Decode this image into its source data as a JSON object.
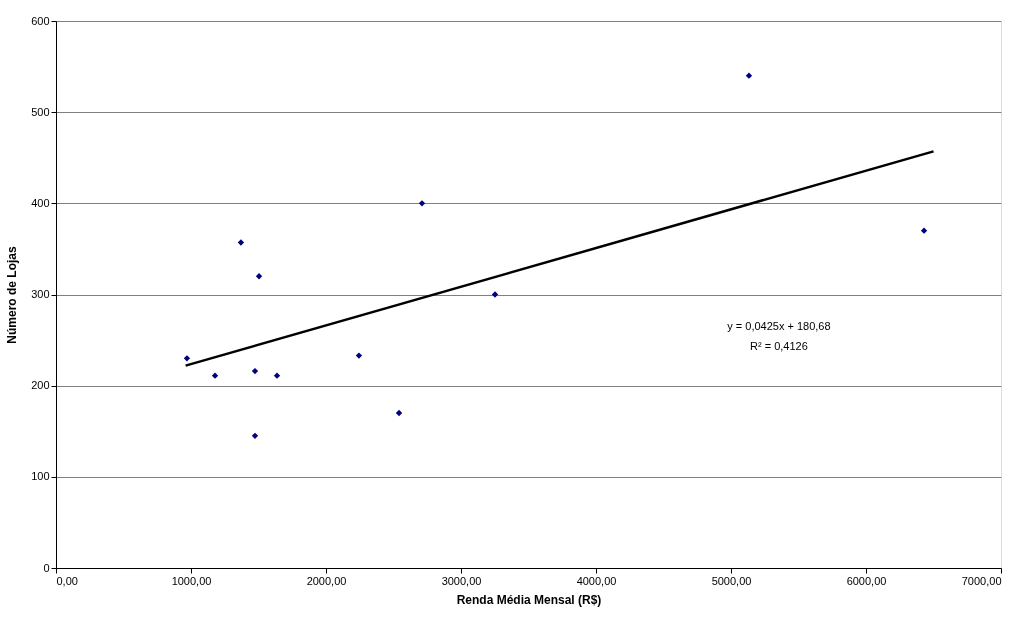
{
  "chart_data": {
    "type": "scatter",
    "xlabel": "Renda Média Mensal (R$)",
    "ylabel": "Número de Lojas",
    "series": [
      {
        "color": "#000080",
        "marker": "diamond",
        "x": [
          970,
          1178,
          1370,
          1474,
          1474,
          1504,
          1637,
          2244,
          2541,
          2711,
          3252,
          5133,
          6430
        ],
        "values": [
          230,
          211,
          357,
          216,
          145,
          320,
          211,
          233,
          170,
          400,
          300,
          540,
          370
        ]
      },
      {
        "type": "line",
        "color": "#000000",
        "line_style": "solid",
        "x": [
          960,
          6500
        ],
        "values": [
          222,
          457
        ]
      }
    ],
    "annotations": [
      "y = 0,0425x + 180,68",
      "R² = 0,4126"
    ],
    "xlim": [
      0,
      7000
    ],
    "ylim": [
      0,
      600
    ],
    "xticks": [
      {
        "value": 0,
        "label": "0,00"
      },
      {
        "value": 1000,
        "label": "1000,00"
      },
      {
        "value": 2000,
        "label": "2000,00"
      },
      {
        "value": 3000,
        "label": "3000,00"
      },
      {
        "value": 4000,
        "label": "4000,00"
      },
      {
        "value": 5000,
        "label": "5000,00"
      },
      {
        "value": 6000,
        "label": "6000,00"
      },
      {
        "value": 7000,
        "label": "7000,00"
      }
    ],
    "yticks": [
      0,
      100,
      200,
      300,
      400,
      500,
      600
    ],
    "grid": "y"
  }
}
